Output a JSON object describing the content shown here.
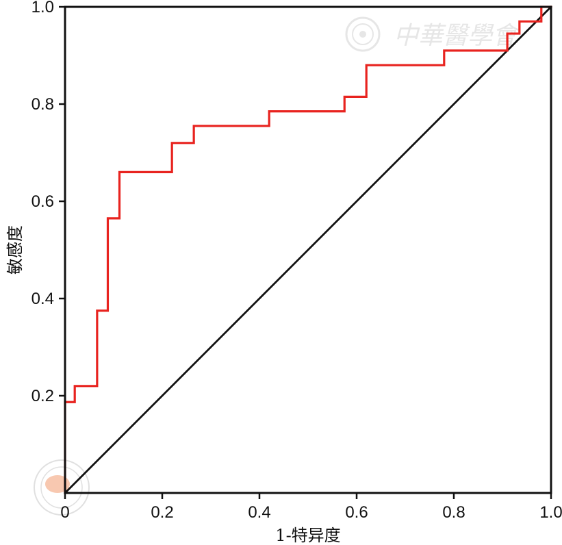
{
  "chart_data": {
    "type": "line",
    "xlabel": "1-特异度",
    "ylabel": "敏感度",
    "xlim": [
      0,
      1
    ],
    "ylim": [
      0,
      1
    ],
    "x_ticks": [
      "0",
      "0.2",
      "0.4",
      "0.6",
      "0.8",
      "1.0"
    ],
    "x_tick_values": [
      0,
      0.2,
      0.4,
      0.6,
      0.8,
      1.0
    ],
    "y_ticks": [
      "0.2",
      "0.4",
      "0.6",
      "0.8",
      "1.0"
    ],
    "y_tick_values": [
      0.2,
      0.4,
      0.6,
      0.8,
      1.0
    ],
    "grid": false,
    "series": [
      {
        "color": "#e8231f",
        "x": [
          0,
          0,
          0.02,
          0.02,
          0.066,
          0.066,
          0.088,
          0.088,
          0.112,
          0.112,
          0.22,
          0.22,
          0.265,
          0.265,
          0.42,
          0.42,
          0.575,
          0.575,
          0.62,
          0.62,
          0.78,
          0.78,
          0.91,
          0.91,
          0.935,
          0.935,
          0.98,
          0.98,
          1.0
        ],
        "y": [
          0,
          0.187,
          0.187,
          0.22,
          0.22,
          0.375,
          0.375,
          0.565,
          0.565,
          0.66,
          0.66,
          0.72,
          0.72,
          0.755,
          0.755,
          0.785,
          0.785,
          0.815,
          0.815,
          0.88,
          0.88,
          0.91,
          0.91,
          0.945,
          0.945,
          0.97,
          0.97,
          1.0,
          1.0
        ]
      },
      {
        "color": "#111111",
        "x": [
          0,
          1
        ],
        "y": [
          0,
          1
        ]
      }
    ]
  },
  "watermark": {
    "text": "中華醫學會",
    "color": "#e6e6e6"
  }
}
